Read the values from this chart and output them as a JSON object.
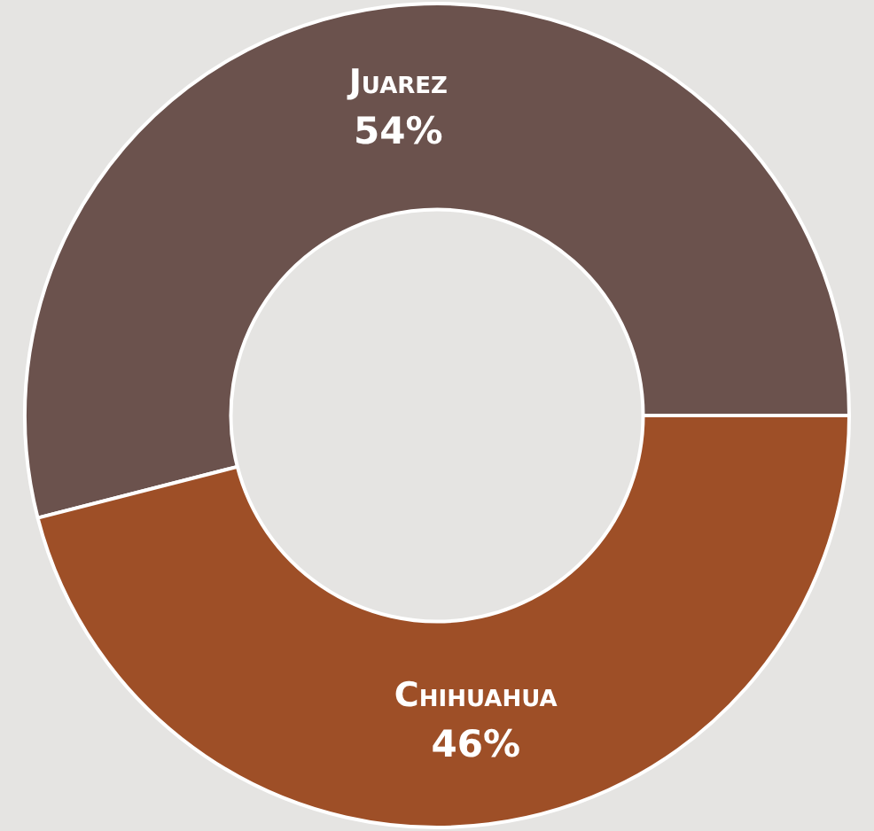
{
  "chart_data": {
    "type": "donut",
    "categories": [
      "Juarez",
      "Chihuahua"
    ],
    "values": [
      54,
      46
    ],
    "value_labels": [
      "54%",
      "46%"
    ],
    "colors": [
      "#6b524d",
      "#9e4f27"
    ],
    "legend": false
  }
}
